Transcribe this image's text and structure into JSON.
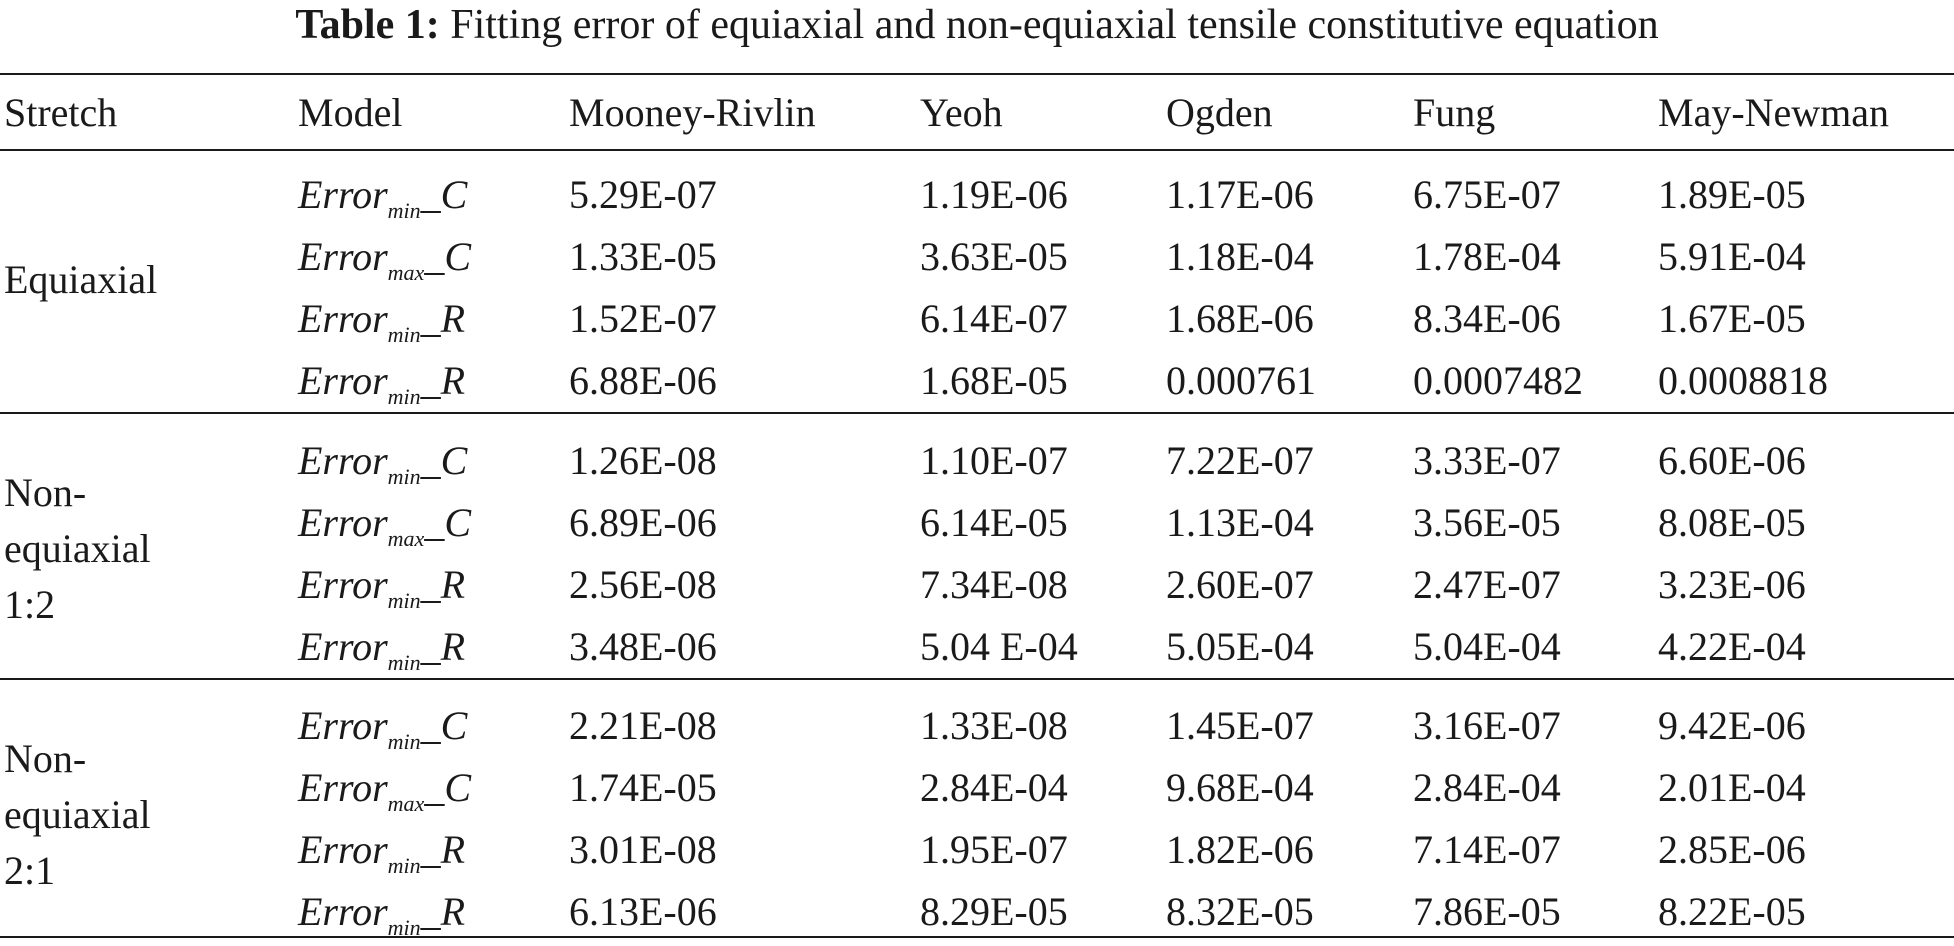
{
  "caption": {
    "label": "Table 1:",
    "text": "Fitting error of equiaxial and non-equiaxial tensile constitutive equation"
  },
  "columns": [
    "Stretch",
    "Model",
    "Mooney-Rivlin",
    "Yeoh",
    "Ogden",
    "Fung",
    "May-Newman"
  ],
  "groups": [
    {
      "stretch": "Equiaxial",
      "rows": [
        {
          "model": {
            "base": "Error",
            "sub": "min",
            "suffix": "_C"
          },
          "values": [
            "5.29E-07",
            "1.19E-06",
            "1.17E-06",
            "6.75E-07",
            "1.89E-05"
          ]
        },
        {
          "model": {
            "base": "Error",
            "sub": "max",
            "suffix": "_C"
          },
          "values": [
            "1.33E-05",
            "3.63E-05",
            "1.18E-04",
            "1.78E-04",
            "5.91E-04"
          ]
        },
        {
          "model": {
            "base": "Error",
            "sub": "min",
            "suffix": "_R"
          },
          "values": [
            "1.52E-07",
            "6.14E-07",
            "1.68E-06",
            "8.34E-06",
            "1.67E-05"
          ]
        },
        {
          "model": {
            "base": "Error",
            "sub": "min",
            "suffix": "_R"
          },
          "values": [
            "6.88E-06",
            "1.68E-05",
            "0.000761",
            "0.0007482",
            "0.0008818"
          ]
        }
      ]
    },
    {
      "stretch": "Non-\nequiaxial\n1:2",
      "rows": [
        {
          "model": {
            "base": "Error",
            "sub": "min",
            "suffix": "_C"
          },
          "values": [
            "1.26E-08",
            "1.10E-07",
            "7.22E-07",
            "3.33E-07",
            "6.60E-06"
          ]
        },
        {
          "model": {
            "base": "Error",
            "sub": "max",
            "suffix": "_C"
          },
          "values": [
            "6.89E-06",
            "6.14E-05",
            "1.13E-04",
            "3.56E-05",
            "8.08E-05"
          ]
        },
        {
          "model": {
            "base": "Error",
            "sub": "min",
            "suffix": "_R"
          },
          "values": [
            "2.56E-08",
            "7.34E-08",
            "2.60E-07",
            "2.47E-07",
            "3.23E-06"
          ]
        },
        {
          "model": {
            "base": "Error",
            "sub": "min",
            "suffix": "_R"
          },
          "values": [
            "3.48E-06",
            "5.04 E-04",
            "5.05E-04",
            "5.04E-04",
            "4.22E-04"
          ]
        }
      ]
    },
    {
      "stretch": "Non-\nequiaxial\n2:1",
      "rows": [
        {
          "model": {
            "base": "Error",
            "sub": "min",
            "suffix": "_C"
          },
          "values": [
            "2.21E-08",
            "1.33E-08",
            "1.45E-07",
            "3.16E-07",
            "9.42E-06"
          ]
        },
        {
          "model": {
            "base": "Error",
            "sub": "max",
            "suffix": "_C"
          },
          "values": [
            "1.74E-05",
            "2.84E-04",
            "9.68E-04",
            "2.84E-04",
            "2.01E-04"
          ]
        },
        {
          "model": {
            "base": "Error",
            "sub": "min",
            "suffix": "_R"
          },
          "values": [
            "3.01E-08",
            "1.95E-07",
            "1.82E-06",
            "7.14E-07",
            "2.85E-06"
          ]
        },
        {
          "model": {
            "base": "Error",
            "sub": "min",
            "suffix": "_R"
          },
          "values": [
            "6.13E-06",
            "8.29E-05",
            "8.32E-05",
            "7.86E-05",
            "8.22E-05"
          ]
        }
      ]
    }
  ]
}
